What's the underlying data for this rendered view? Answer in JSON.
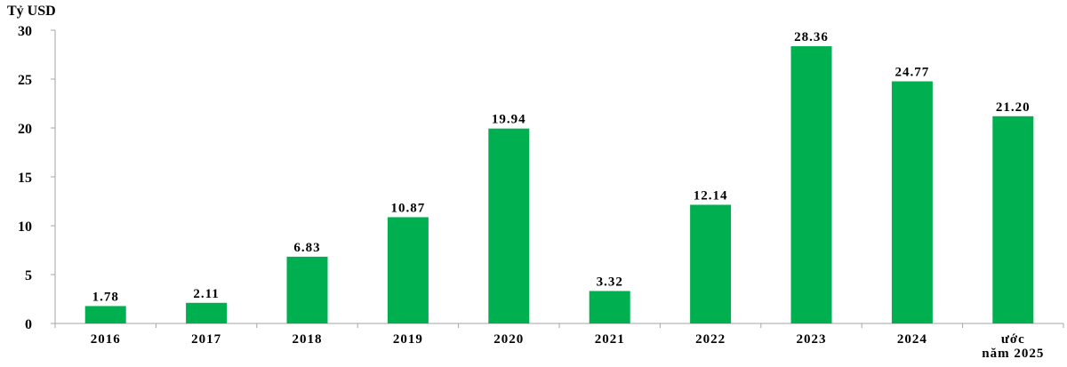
{
  "chart_data": {
    "type": "bar",
    "ylabel": "Tỷ USD",
    "categories": [
      "2016",
      "2017",
      "2018",
      "2019",
      "2020",
      "2021",
      "2022",
      "2023",
      "2024",
      "ước\nnăm 2025"
    ],
    "values": [
      1.78,
      2.11,
      6.83,
      10.87,
      19.94,
      3.32,
      12.14,
      28.36,
      24.77,
      21.2
    ],
    "data_labels": [
      "1.78",
      "2.11",
      "6.83",
      "10.87",
      "19.94",
      "3.32",
      "12.14",
      "28.36",
      "24.77",
      "21.20"
    ],
    "ylim": [
      0,
      30
    ],
    "yticks": [
      "0",
      "5",
      "10",
      "15",
      "20",
      "25",
      "30"
    ],
    "grid": false,
    "bar_color": "#00B050",
    "axis_color": "#A6A6A6"
  }
}
